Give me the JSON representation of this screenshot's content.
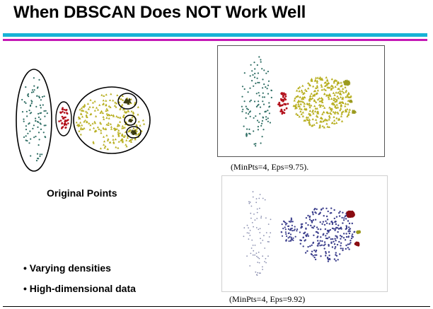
{
  "slide": {
    "title": "When DBSCAN Does NOT Work Well",
    "original_label": "Original Points",
    "caption_top": "(MinPts=4, Eps=9.75).",
    "caption_bottom": "(MinPts=4, Eps=9.92)",
    "bullets": [
      "• Varying densities",
      "• High-dimensional data"
    ]
  },
  "colors": {
    "rule_cyan": "#17b3d6",
    "rule_magenta": "#c418b5",
    "cluster_teal": "#2f6e64",
    "cluster_red": "#b3121d",
    "cluster_olive": "#b7ae1e",
    "dense_dark": "#3a3a10",
    "noise_blue": "#3b3e8c",
    "dense_red": "#8a0d12",
    "dense_olive": "#9b9a1f"
  }
}
